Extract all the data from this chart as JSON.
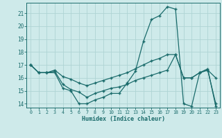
{
  "xlabel": "Humidex (Indice chaleur)",
  "bg_color": "#ceeaea",
  "line_color": "#1a6b6b",
  "grid_color": "#aed4d4",
  "line1_y": [
    17.0,
    16.4,
    16.4,
    16.4,
    15.2,
    15.0,
    14.0,
    14.0,
    14.3,
    14.5,
    14.8,
    14.8,
    15.6,
    16.5,
    18.8,
    20.5,
    20.8,
    21.5,
    21.3,
    14.0,
    13.8,
    16.4,
    16.7,
    13.8
  ],
  "line2_y": [
    17.0,
    16.4,
    16.4,
    16.6,
    16.1,
    15.9,
    15.6,
    15.4,
    15.6,
    15.8,
    16.0,
    16.2,
    16.4,
    16.7,
    17.0,
    17.3,
    17.5,
    17.8,
    17.8,
    16.0,
    16.0,
    16.4,
    16.6,
    16.0
  ],
  "line3_y": [
    17.0,
    16.4,
    16.4,
    16.5,
    15.5,
    15.1,
    14.9,
    14.5,
    14.8,
    15.0,
    15.2,
    15.3,
    15.5,
    15.8,
    16.0,
    16.2,
    16.4,
    16.6,
    17.8,
    16.0,
    16.0,
    16.4,
    16.6,
    14.0
  ],
  "yticks": [
    14,
    15,
    16,
    17,
    18,
    19,
    20,
    21
  ],
  "xticks": [
    0,
    1,
    2,
    3,
    4,
    5,
    6,
    7,
    8,
    9,
    10,
    11,
    12,
    13,
    14,
    15,
    16,
    17,
    18,
    19,
    20,
    21,
    22,
    23
  ]
}
